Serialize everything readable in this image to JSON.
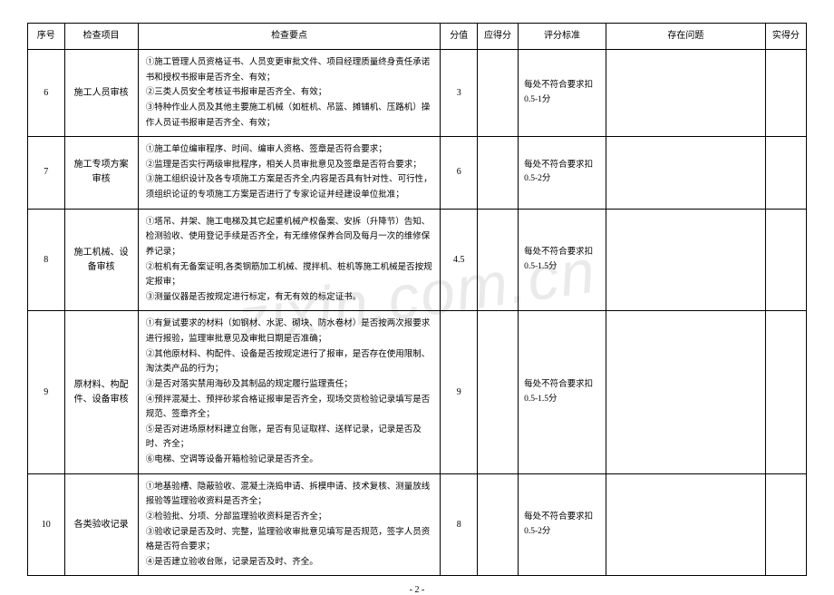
{
  "watermark": "zixin.com.cn",
  "headers": {
    "num": "序号",
    "item": "检查项目",
    "points": "检查要点",
    "score": "分值",
    "due": "应得分",
    "standard": "评分标准",
    "issues": "存在问题",
    "actual": "实得分"
  },
  "rows": [
    {
      "num": "6",
      "item": "施工人员审核",
      "points": "①施工管理人员资格证书、人员变更审批文件、项目经理质量终身责任承诺书和授权书报审是否齐全、有效；\n②三类人员安全考核证书报审是否齐全、有效；\n③特种作业人员及其他主要施工机械（如桩机、吊篮、摊铺机、压路机）操作人员证书报审是否齐全、有效；",
      "score": "3",
      "standard": "每处不符合要求扣0.5-1分"
    },
    {
      "num": "7",
      "item": "施工专项方案审核",
      "points": "①施工单位编审程序、时间、编审人资格、签章是否符合要求；\n②监理是否实行两级审批程序，相关人员审批意见及签章是否符合要求；\n③施工组织设计及各专项施工方案是否齐全,内容是否具有针对性、可行性，须组织论证的专项施工方案是否进行了专家论证并经建设单位批准；",
      "score": "6",
      "standard": "每处不符合要求扣0.5-2分"
    },
    {
      "num": "8",
      "item": "施工机械、设备审核",
      "points": "①塔吊、井架、施工电梯及其它起重机械产权备案、安拆（升降节）告知、检测验收、使用登记手续是否齐全，有无维修保养合同及每月一次的维修保养记录；\n②桩机有无备案证明,各类钢筋加工机械、搅拌机、桩机等施工机械是否按规定报审；\n③测量仪器是否按规定进行标定，有无有效的标定证书。",
      "score": "4.5",
      "standard": "每处不符合要求扣0.5-1.5分"
    },
    {
      "num": "9",
      "item": "原材料、构配件、设备审核",
      "points": "①有复试要求的材料（如钢材、水泥、砌块、防水卷材）是否按两次报要求进行报验，监理审批意见及审批日期是否准确；\n②其他原材料、构配件、设备是否按规定进行了报审，是否存在使用限制、淘汰类产品的行为；\n③是否对落实禁用海砂及其制品的规定履行监理责任；\n④预拌混凝土、预拌砂浆合格证报审是否齐全，现场交货检验记录填写是否规范、签章齐全；\n⑤是否对进场原材料建立台账，是否有见证取样、送样记录，记录是否及时、齐全；\n⑥电梯、空调等设备开箱检验记录是否齐全。",
      "score": "9",
      "standard": "每处不符合要求扣0.5-1.5分"
    },
    {
      "num": "10",
      "item": "各类验收记录",
      "points": "①地基验槽、隐蔽验收、混凝土浇捣申请、拆模申请、技术复核、测量放线报验等监理验收资料是否齐全；\n②检验批、分项、分部监理验收资料是否齐全；\n③验收记录是否及时、完整，监理验收审批意见填写是否规范，签字人员资格是否符合要求；\n④是否建立验收台账，记录是否及时、齐全。",
      "score": "8",
      "standard": "每处不符合要求扣0.5-2分"
    }
  ],
  "pageNumber": "- 2 -",
  "columnWidths": {
    "num": "36px",
    "item": "72px",
    "points": "296px",
    "score": "36px",
    "due": "40px",
    "standard": "86px",
    "issues": "156px",
    "actual": "40px"
  },
  "colors": {
    "background": "#ffffff",
    "border": "#000000",
    "text": "#000000",
    "watermark": "rgba(180,180,180,0.28)"
  }
}
